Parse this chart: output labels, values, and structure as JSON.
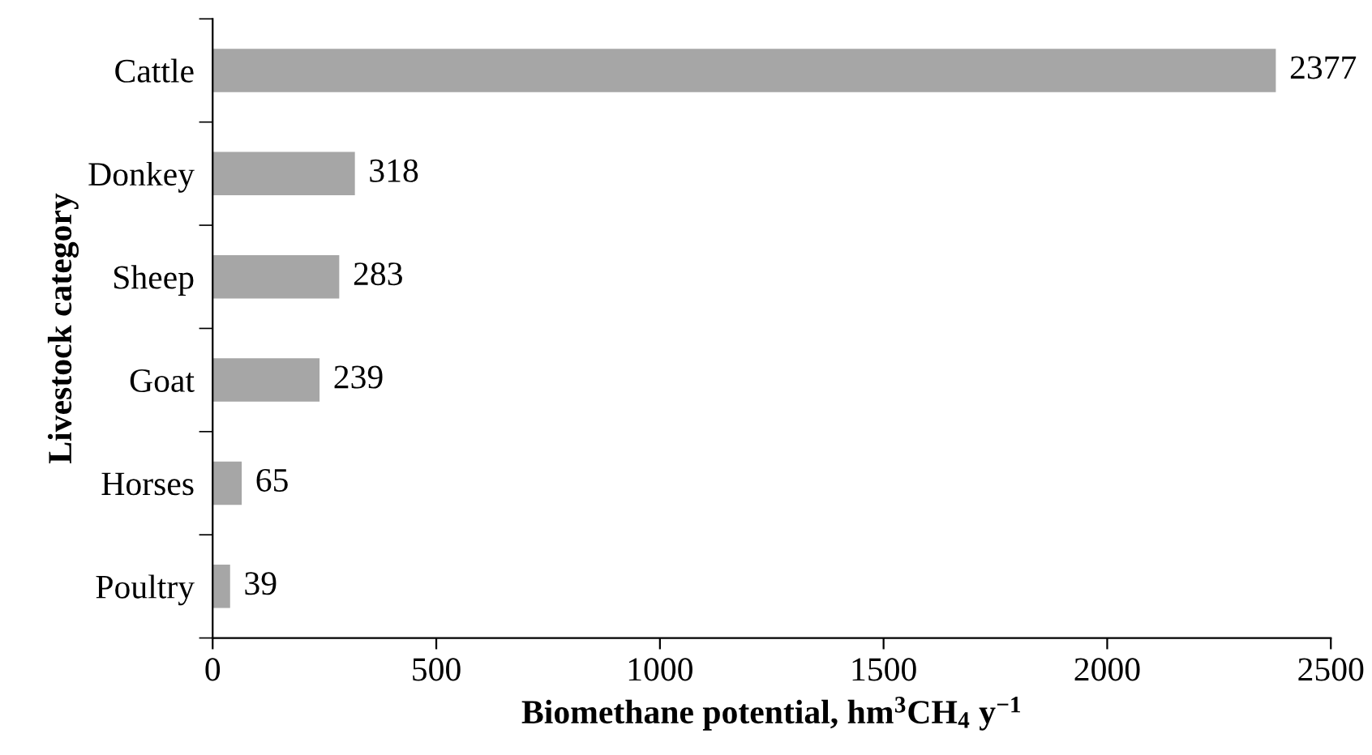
{
  "chart_data": {
    "type": "bar",
    "orientation": "horizontal",
    "xlabel": "Biomethane potential, hm$^{3}$CH$_{4}$ y$^{−1}$",
    "ylabel": "Livestock category",
    "categories": [
      "Cattle",
      "Donkey",
      "Sheep",
      "Goat",
      "Horses",
      "Poultry"
    ],
    "values": [
      2377,
      318,
      283,
      239,
      65,
      39
    ],
    "color": "#a6a6a6",
    "xlim": [
      0,
      2500
    ],
    "xticks": [
      0,
      500,
      1000,
      1500,
      2000,
      2500
    ],
    "data_labels": true,
    "grid": false,
    "legend": false
  }
}
